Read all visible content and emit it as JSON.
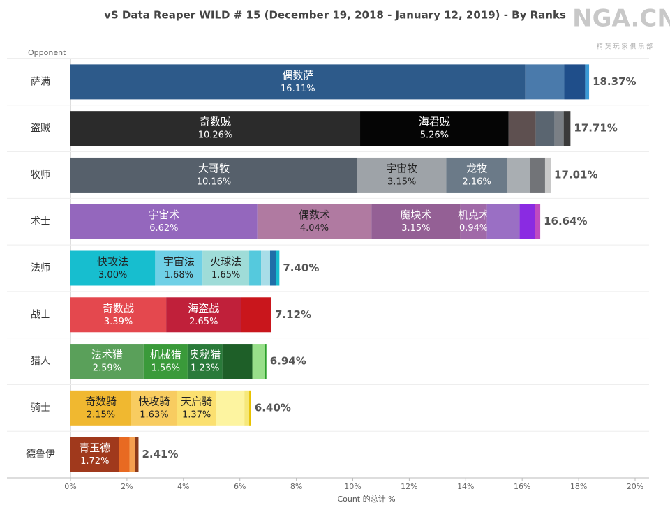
{
  "chart_data": {
    "type": "bar",
    "orientation": "horizontal",
    "stacked": true,
    "title": "vS Data Reaper WILD # 15 (December 19, 2018 - January 12, 2019) - By Ranks",
    "watermark": {
      "logo": "NGA.CN",
      "tagline": "精 英 玩 家 俱 乐 部"
    },
    "y_axis_header": "Opponent",
    "xlabel": "Count 的总计 %",
    "xlim": [
      0,
      20
    ],
    "xticks": [
      {
        "value": 0,
        "label": "0%"
      },
      {
        "value": 2,
        "label": "2%"
      },
      {
        "value": 4,
        "label": "4%"
      },
      {
        "value": 6,
        "label": "6%"
      },
      {
        "value": 8,
        "label": "8%"
      },
      {
        "value": 10,
        "label": "10%"
      },
      {
        "value": 12,
        "label": "12%"
      },
      {
        "value": 14,
        "label": "14%"
      },
      {
        "value": 16,
        "label": "16%"
      },
      {
        "value": 18,
        "label": "18%"
      },
      {
        "value": 20,
        "label": "20%"
      }
    ],
    "categories": [
      "萨满",
      "盗贼",
      "牧师",
      "术士",
      "法师",
      "战士",
      "猎人",
      "骑士",
      "德鲁伊"
    ],
    "totals": [
      18.37,
      17.71,
      17.01,
      16.64,
      7.4,
      7.12,
      6.94,
      6.4,
      2.41
    ],
    "total_labels": [
      "18.37%",
      "17.71%",
      "17.01%",
      "16.64%",
      "7.40%",
      "7.12%",
      "6.94%",
      "6.40%",
      "2.41%"
    ],
    "segments": [
      [
        {
          "name": "偶数萨",
          "value": 16.11,
          "value_label": "16.11%",
          "color": "#2d5a8a"
        },
        {
          "value": 1.38,
          "color": "#4a7aab"
        },
        {
          "value": 0.74,
          "color": "#1f4e8a"
        },
        {
          "value": 0.14,
          "color": "#3a9ad6"
        }
      ],
      [
        {
          "name": "奇数贼",
          "value": 10.26,
          "value_label": "10.26%",
          "color": "#2b2b2b"
        },
        {
          "name": "海君贼",
          "value": 5.26,
          "value_label": "5.26%",
          "color": "#050505"
        },
        {
          "value": 0.96,
          "color": "#5e5050"
        },
        {
          "value": 0.67,
          "color": "#5a6570"
        },
        {
          "value": 0.32,
          "color": "#7a7f85"
        },
        {
          "value": 0.24,
          "color": "#3a3a3a"
        }
      ],
      [
        {
          "name": "大哥牧",
          "value": 10.16,
          "value_label": "10.16%",
          "color": "#56606b"
        },
        {
          "name": "宇宙牧",
          "value": 3.15,
          "value_label": "3.15%",
          "color": "#9ea3a8"
        },
        {
          "name": "龙牧",
          "value": 2.16,
          "value_label": "2.16%",
          "color": "#6b7a88"
        },
        {
          "value": 0.82,
          "color": "#a9aeb2"
        },
        {
          "value": 0.52,
          "color": "#727478"
        },
        {
          "value": 0.2,
          "color": "#c8c8c8"
        }
      ],
      [
        {
          "name": "宇宙术",
          "value": 6.62,
          "value_label": "6.62%",
          "color": "#9467bd"
        },
        {
          "name": "偶数术",
          "value": 4.04,
          "value_label": "4.04%",
          "color": "#b07aa1"
        },
        {
          "name": "魔块术",
          "value": 3.15,
          "value_label": "3.15%",
          "color": "#946095"
        },
        {
          "name": "机克术",
          "value": 0.94,
          "value_label": "0.94%",
          "color": "#a06aa8"
        },
        {
          "value": 1.16,
          "color": "#9a6fc4"
        },
        {
          "value": 0.54,
          "color": "#8a2be2"
        },
        {
          "value": 0.19,
          "color": "#c04bc0"
        }
      ],
      [
        {
          "name": "快攻法",
          "value": 3.0,
          "value_label": "3.00%",
          "color": "#17becf"
        },
        {
          "name": "宇宙法",
          "value": 1.68,
          "value_label": "1.68%",
          "color": "#6fd0e6"
        },
        {
          "name": "火球法",
          "value": 1.65,
          "value_label": "1.65%",
          "color": "#9fdcd8"
        },
        {
          "value": 0.42,
          "color": "#55c9dd"
        },
        {
          "value": 0.32,
          "color": "#a8dde8"
        },
        {
          "value": 0.2,
          "color": "#1f6fa8"
        },
        {
          "value": 0.13,
          "color": "#17becf"
        }
      ],
      [
        {
          "name": "奇数战",
          "value": 3.39,
          "value_label": "3.39%",
          "color": "#e4484e"
        },
        {
          "name": "海盗战",
          "value": 2.65,
          "value_label": "2.65%",
          "color": "#c0203a"
        },
        {
          "value": 1.08,
          "color": "#c9161c"
        }
      ],
      [
        {
          "name": "法术猎",
          "value": 2.59,
          "value_label": "2.59%",
          "color": "#5aa05a"
        },
        {
          "name": "机械猎",
          "value": 1.56,
          "value_label": "1.56%",
          "color": "#3a9a3a"
        },
        {
          "name": "奥秘猎",
          "value": 1.23,
          "value_label": "1.23%",
          "color": "#2a7a3a"
        },
        {
          "value": 1.06,
          "color": "#1e5f28"
        },
        {
          "value": 0.45,
          "color": "#98df8a"
        },
        {
          "value": 0.05,
          "color": "#2ca02c"
        }
      ],
      [
        {
          "name": "奇数骑",
          "value": 2.15,
          "value_label": "2.15%",
          "color": "#f0b830"
        },
        {
          "name": "快攻骑",
          "value": 1.63,
          "value_label": "1.63%",
          "color": "#f8cc60"
        },
        {
          "name": "天启骑",
          "value": 1.37,
          "value_label": "1.37%",
          "color": "#fbe070"
        },
        {
          "value": 1.01,
          "color": "#fdf4a0"
        },
        {
          "value": 0.17,
          "color": "#f6e87a"
        },
        {
          "value": 0.07,
          "color": "#e8c200"
        }
      ],
      [
        {
          "name": "青玉德",
          "value": 1.72,
          "value_label": "1.72%",
          "color": "#a0391c"
        },
        {
          "value": 0.37,
          "color": "#e86a22"
        },
        {
          "value": 0.2,
          "color": "#f5a050"
        },
        {
          "value": 0.12,
          "color": "#8b3a1a"
        }
      ]
    ]
  }
}
